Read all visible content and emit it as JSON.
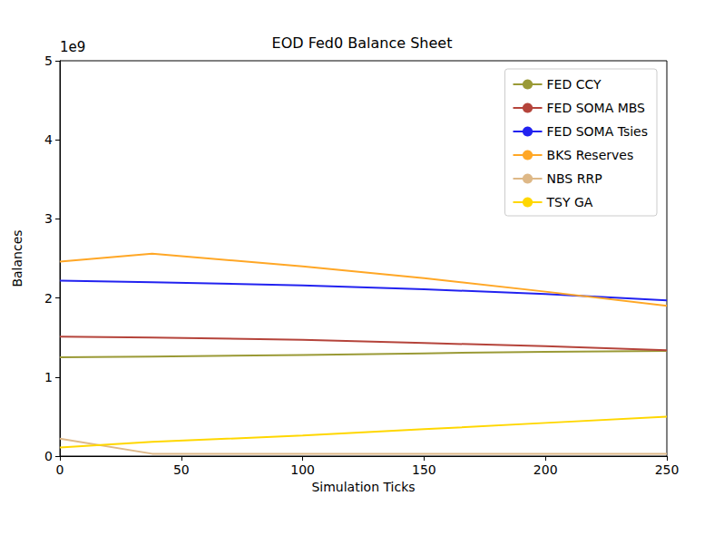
{
  "chart_data": {
    "type": "line",
    "title": "EOD Fed0 Balance Sheet",
    "x_label": "Simulation Ticks",
    "y_label": "Balances",
    "annotations": [
      "1e9"
    ],
    "x": [
      0,
      38,
      100,
      150,
      200,
      250
    ],
    "series": [
      {
        "name": "FED CCY",
        "color": "#9a9a36",
        "values": [
          1.25,
          1.26,
          1.28,
          1.3,
          1.32,
          1.33
        ]
      },
      {
        "name": "FED SOMA MBS",
        "color": "#b5443b",
        "values": [
          1.51,
          1.5,
          1.47,
          1.43,
          1.39,
          1.34
        ]
      },
      {
        "name": "FED SOMA Tsies",
        "color": "#2222f0",
        "values": [
          2.22,
          2.2,
          2.16,
          2.11,
          2.05,
          1.97
        ]
      },
      {
        "name": "BKS Reserves",
        "color": "#ffa726",
        "values": [
          2.46,
          2.56,
          2.4,
          2.25,
          2.08,
          1.9
        ]
      },
      {
        "name": "NBS RRP",
        "color": "#deb887",
        "values": [
          0.22,
          0.03,
          0.03,
          0.03,
          0.03,
          0.03
        ]
      },
      {
        "name": "TSY GA",
        "color": "#ffd700",
        "values": [
          0.11,
          0.18,
          0.26,
          0.34,
          0.42,
          0.5
        ]
      }
    ],
    "xlim": [
      0,
      250
    ],
    "xticks": [
      0,
      50,
      100,
      150,
      200,
      250
    ],
    "ylim": [
      0,
      5
    ],
    "yticks": [
      0,
      1,
      2,
      3,
      4,
      5
    ],
    "grid": false,
    "legend": "upper right"
  }
}
